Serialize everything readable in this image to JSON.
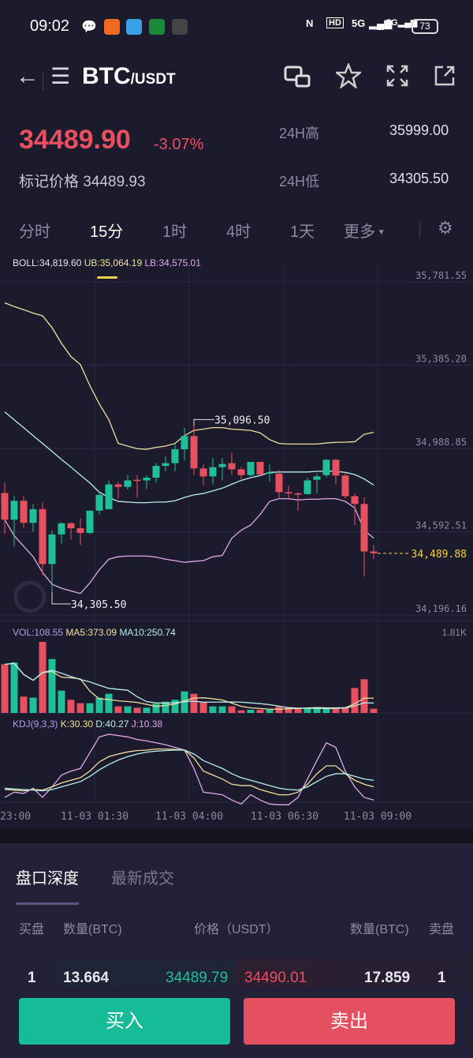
{
  "status_bar": {
    "time": "09:02",
    "battery": "73",
    "network": "5G"
  },
  "header": {
    "base": "BTC",
    "quote": "/USDT"
  },
  "ticker": {
    "last_price": "34489.90",
    "change_pct": "-3.07%",
    "mark_label": "标记价格",
    "mark_price": "34489.93",
    "high_label": "24H高",
    "high_value": "35999.00",
    "low_label": "24H低",
    "low_value": "34305.50"
  },
  "intervals": [
    {
      "label": "分时"
    },
    {
      "label": "15分"
    },
    {
      "label": "1时"
    },
    {
      "label": "4时"
    },
    {
      "label": "1天"
    },
    {
      "label": "更多"
    }
  ],
  "active_interval": "15分",
  "colors": {
    "bg": "#1c1b2e",
    "up": "#1fbf98",
    "down": "#e8505f",
    "ub": "#f0e0a0",
    "mb": "#b8f0e8",
    "lb": "#e0a8e8",
    "accent": "#f0d048"
  },
  "chart_data": {
    "type": "candlestick",
    "legend": {
      "boll": "BOLL:34,819.60",
      "ub": "UB:35,064.19",
      "lb": "LB:34,575.01"
    },
    "y_ticks": [
      "35,781.55",
      "35,385.20",
      "34,988.85",
      "34,592.51",
      "34,196.16"
    ],
    "y_tick_values": [
      35781.55,
      35385.2,
      34988.85,
      34592.51,
      34196.16
    ],
    "x_ticks": [
      "23:00",
      "11-03 01:30",
      "11-03 04:00",
      "11-03 06:30",
      "11-03 09:00"
    ],
    "high_marker": "35,096.50",
    "low_marker": "34,305.50",
    "current_price": "34,489.88",
    "current_value": 34489.88,
    "candles": [
      [
        34777,
        34825,
        34581,
        34650
      ],
      [
        34650,
        34762,
        34524,
        34740
      ],
      [
        34740,
        34762,
        34612,
        34635
      ],
      [
        34635,
        34725,
        34593,
        34700
      ],
      [
        34700,
        34731,
        34387,
        34439
      ],
      [
        34439,
        34600,
        34305.5,
        34580
      ],
      [
        34580,
        34637,
        34537,
        34633
      ],
      [
        34633,
        34637,
        34556,
        34609
      ],
      [
        34609,
        34656,
        34530,
        34587
      ],
      [
        34587,
        34693,
        34580,
        34693
      ],
      [
        34693,
        34781,
        34675,
        34768
      ],
      [
        34700,
        34837,
        34706,
        34818
      ],
      [
        34818,
        34831,
        34750,
        34806
      ],
      [
        34806,
        34862,
        34793,
        34837
      ],
      [
        34840,
        34862,
        34756,
        34837
      ],
      [
        34837,
        34862,
        34797,
        34850
      ],
      [
        34850,
        34919,
        34825,
        34906
      ],
      [
        34906,
        34950,
        34881,
        34919
      ],
      [
        34919,
        35013,
        34881,
        34985
      ],
      [
        34985,
        35088,
        34931,
        35048
      ],
      [
        35048,
        35096.5,
        34862,
        34894
      ],
      [
        34894,
        34913,
        34812,
        34856
      ],
      [
        34856,
        34944,
        34818,
        34900
      ],
      [
        34900,
        34944,
        34837,
        34915
      ],
      [
        34919,
        34969,
        34862,
        34890
      ],
      [
        34890,
        34900,
        34843,
        34862
      ],
      [
        34862,
        34925,
        34856,
        34925
      ],
      [
        34925,
        34925,
        34856,
        34865
      ],
      [
        34869,
        34913,
        34831,
        34875
      ],
      [
        34869,
        34887,
        34750,
        34781
      ],
      [
        34781,
        34812,
        34750,
        34775
      ],
      [
        34775,
        34781,
        34693,
        34769
      ],
      [
        34772,
        34850,
        34769,
        34837
      ],
      [
        34840,
        34869,
        34775,
        34856
      ],
      [
        34862,
        34938,
        34850,
        34935
      ],
      [
        34935,
        34938,
        34818,
        34860
      ],
      [
        34860,
        34869,
        34750,
        34762
      ],
      [
        34762,
        34775,
        34625,
        34725
      ],
      [
        34725,
        34756,
        34380,
        34499
      ],
      [
        34499,
        34530,
        34462,
        34489.88
      ]
    ],
    "ub": [
      35682,
      35664,
      35649,
      35633,
      35620,
      35564,
      35489,
      35426,
      35388,
      35288,
      35201,
      35126,
      35013,
      35000,
      34988,
      34985,
      34994,
      35000,
      35013,
      35050,
      35075,
      35081,
      35088,
      35088,
      35081,
      35078,
      35075,
      35063,
      35031,
      35013,
      35010,
      35010,
      35010,
      35010,
      35015,
      35018,
      35019,
      35021,
      35056,
      35066
    ],
    "mb": [
      35163,
      35125,
      35088,
      35050,
      35013,
      34975,
      34937,
      34900,
      34862,
      34825,
      34781,
      34756,
      34737,
      34734,
      34731,
      34731,
      34734,
      34734,
      34740,
      34756,
      34768,
      34775,
      34787,
      34800,
      34819,
      34837,
      34850,
      34860,
      34875,
      34877,
      34877,
      34877,
      34877,
      34880,
      34881,
      34880,
      34875,
      34865,
      34844,
      34815
    ],
    "lb": [
      34650,
      34574,
      34524,
      34474,
      34399,
      34343,
      34324,
      34311,
      34299,
      34349,
      34412,
      34462,
      34474,
      34477,
      34477,
      34477,
      34472,
      34462,
      34455,
      34447,
      34452,
      34455,
      34474,
      34480,
      34562,
      34600,
      34625,
      34675,
      34737,
      34750,
      34750,
      34744,
      34747,
      34747,
      34750,
      34750,
      34737,
      34706,
      34600,
      34562
    ],
    "volume": {
      "legend": {
        "vol": "VOL:108.55",
        "ma5": "MA5:373.09",
        "ma10": "MA10:250.74"
      },
      "max_label": "1.81K",
      "max": 1810,
      "values": [
        1240,
        1287,
        416,
        389,
        1810,
        1374,
        570,
        335,
        248,
        248,
        389,
        489,
        168,
        168,
        134,
        134,
        235,
        288,
        335,
        550,
        489,
        268,
        168,
        168,
        168,
        67,
        80,
        80,
        80,
        168,
        134,
        121,
        134,
        134,
        134,
        134,
        134,
        637,
        858,
        108.55
      ]
    },
    "kdj": {
      "legend": {
        "title": "KDJ(9,3,3)",
        "k": "K:30.30",
        "d": "D:40.27",
        "j": "J:10.38"
      },
      "k": [
        26.3,
        25.5,
        24.3,
        26.3,
        25.5,
        30.3,
        36.3,
        40.3,
        44.2,
        54.2,
        68.1,
        76.1,
        80.0,
        83.2,
        85.2,
        86.0,
        87.6,
        87.6,
        86.8,
        86.0,
        74.1,
        54.2,
        48.2,
        42.2,
        34.3,
        32.3,
        32.3,
        26.3,
        22.3,
        18.4,
        18.4,
        22.3,
        34.3,
        50.2,
        62.1,
        62.1,
        50.2,
        40.3,
        34.3,
        30.3
      ],
      "d": [
        28.3,
        27.1,
        26.3,
        25.5,
        24.3,
        26.3,
        30.3,
        34.3,
        38.3,
        46.2,
        56.2,
        64.1,
        70.9,
        76.1,
        80.0,
        82.8,
        84.4,
        85.2,
        86.0,
        86.0,
        80.0,
        70.1,
        64.1,
        58.2,
        50.2,
        44.2,
        40.3,
        36.3,
        32.3,
        28.3,
        26.3,
        25.5,
        30.3,
        38.3,
        46.2,
        50.2,
        50.2,
        46.2,
        42.2,
        40.27
      ],
      "j": [
        14.4,
        22.3,
        20.4,
        28.3,
        14.4,
        30.3,
        48.2,
        54.2,
        58.2,
        82.0,
        105.9,
        109.9,
        107.9,
        105.9,
        101.9,
        99.9,
        97.0,
        94.0,
        90.0,
        86.0,
        58.2,
        22.3,
        20.4,
        18.4,
        10.4,
        4.4,
        18.4,
        10.4,
        4.4,
        3.2,
        3.2,
        14.4,
        42.2,
        70.1,
        97.0,
        90.0,
        54.2,
        30.3,
        14.4,
        10.38
      ]
    }
  },
  "orderbook": {
    "tabs": [
      "盘口深度",
      "最新成交"
    ],
    "headers": {
      "buy": "买盘",
      "qty_left": "数量(BTC)",
      "price": "价格（USDT）",
      "qty_right": "数量(BTC)",
      "sell": "卖盘"
    },
    "rows": [
      {
        "bid_index": "1",
        "bid_qty": "13.664",
        "bid_price": "34489.79",
        "ask_price": "34490.01",
        "ask_qty": "17.859",
        "ask_index": "1"
      }
    ]
  },
  "actions": {
    "buy": "买入",
    "sell": "卖出"
  }
}
